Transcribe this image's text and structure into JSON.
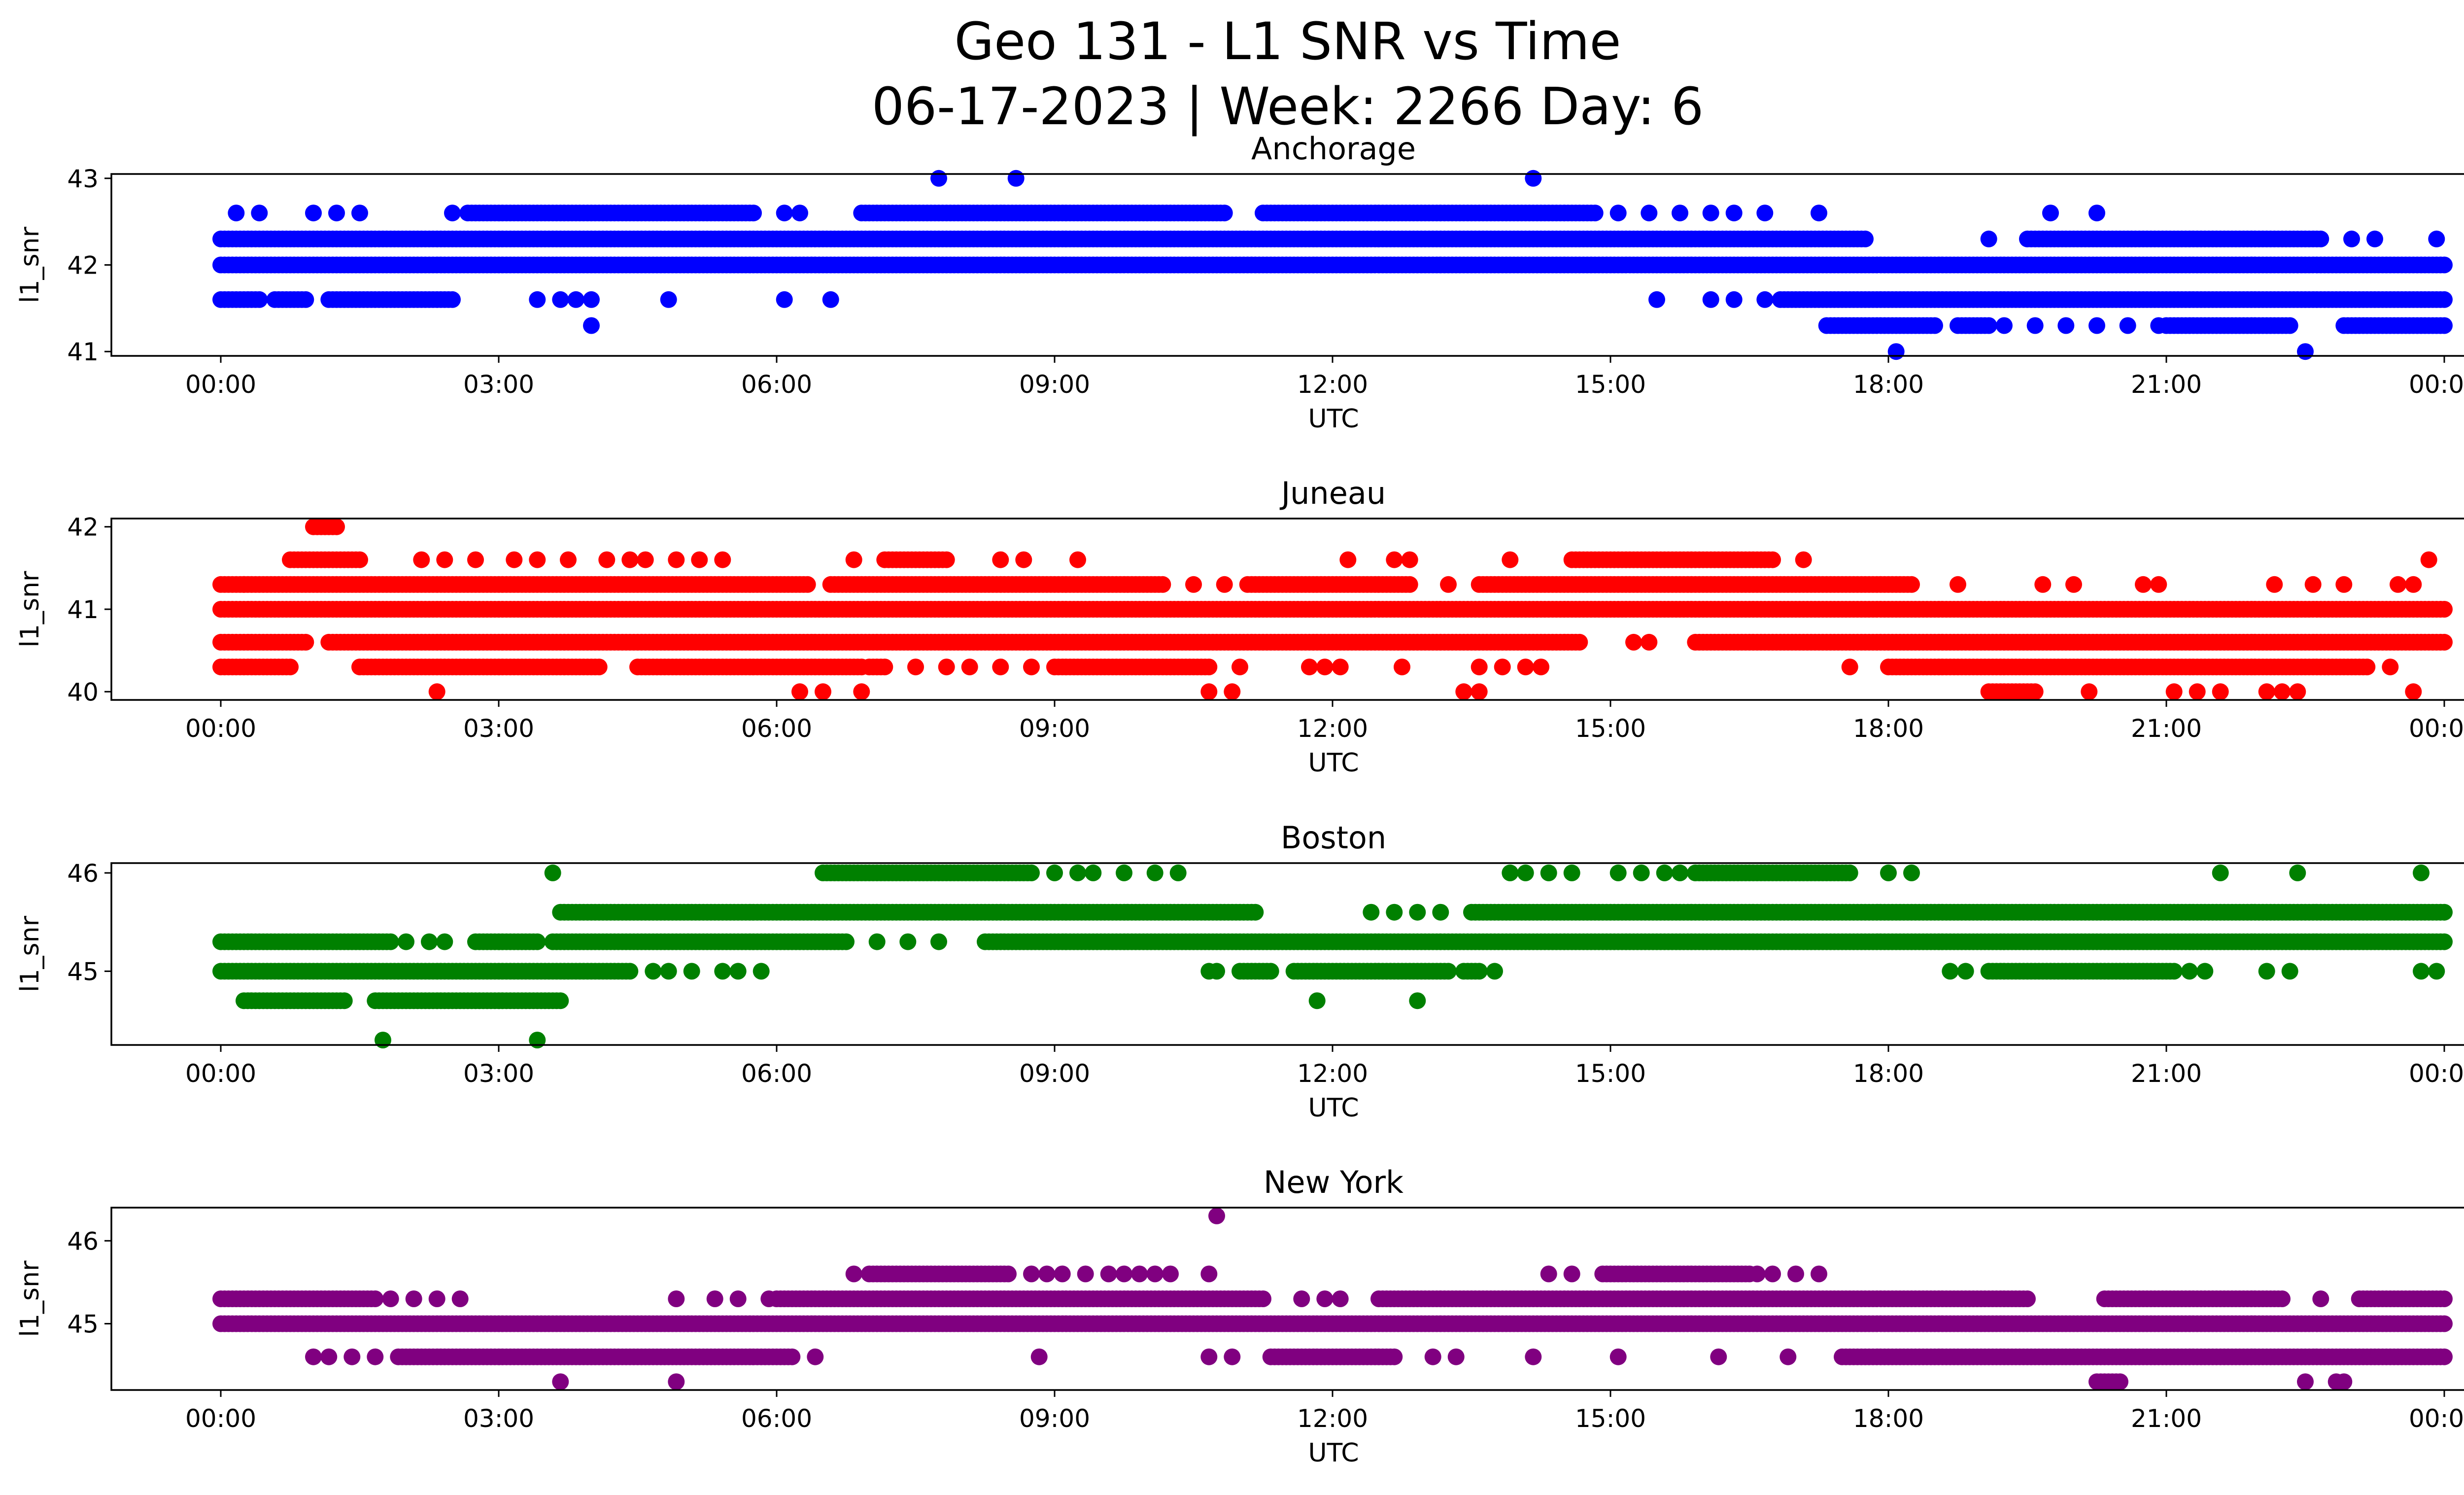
{
  "figure": {
    "title_line1": "Geo 131 - L1 SNR vs Time",
    "title_line2": "06-17-2023 | Week: 2266 Day: 6"
  },
  "chart_data": [
    {
      "type": "scatter",
      "title": "Anchorage",
      "xlabel": "UTC",
      "ylabel": "l1_snr",
      "color": "#0000ff",
      "xlim": [
        "2023-06-17T00:00",
        "2023-06-18T00:00"
      ],
      "ylim": [
        40.95,
        43.05
      ],
      "yticks": [
        41,
        42,
        43
      ],
      "xtick_labels": [
        "00:00",
        "03:00",
        "06:00",
        "09:00",
        "12:00",
        "15:00",
        "18:00",
        "21:00",
        "00:00"
      ],
      "grid": false,
      "series": [
        {
          "y": 42.3,
          "time_ranges": [
            [
              "00:00",
              "17:45"
            ],
            [
              "19:30",
              "22:40"
            ]
          ],
          "points": [
            "19:05",
            "23:00",
            "23:15",
            "23:55"
          ]
        },
        {
          "y": 42.0,
          "time_ranges": [
            [
              "00:00",
              "24:00"
            ]
          ]
        },
        {
          "y": 41.6,
          "time_ranges": [
            [
              "00:00",
              "00:25"
            ],
            [
              "00:35",
              "00:55"
            ],
            [
              "01:10",
              "02:30"
            ],
            [
              "16:50",
              "24:00"
            ]
          ],
          "points": [
            "03:25",
            "03:40",
            "03:50",
            "04:00",
            "04:50",
            "06:05",
            "06:35",
            "15:30",
            "16:05",
            "16:20",
            "16:40"
          ]
        },
        {
          "y": 42.6,
          "time_ranges": [
            [
              "02:40",
              "05:45"
            ],
            [
              "06:55",
              "10:50"
            ],
            [
              "11:15",
              "14:50"
            ]
          ],
          "points": [
            "00:10",
            "00:25",
            "01:00",
            "01:15",
            "01:30",
            "02:30",
            "06:05",
            "06:15",
            "15:05",
            "15:25",
            "15:45",
            "16:05",
            "16:20",
            "16:40",
            "17:15",
            "19:45",
            "20:15"
          ]
        },
        {
          "y": 41.3,
          "time_ranges": [
            [
              "17:20",
              "18:30"
            ],
            [
              "18:45",
              "19:05"
            ],
            [
              "21:00",
              "22:20"
            ],
            [
              "22:55",
              "24:00"
            ]
          ],
          "points": [
            "04:00",
            "19:15",
            "19:35",
            "19:55",
            "20:15",
            "20:35",
            "20:55"
          ]
        },
        {
          "y": 43.0,
          "time_ranges": [],
          "points": [
            "07:45",
            "08:35",
            "14:10"
          ]
        },
        {
          "y": 41.0,
          "time_ranges": [],
          "points": [
            "18:05",
            "22:30"
          ]
        }
      ]
    },
    {
      "type": "scatter",
      "title": "Juneau",
      "xlabel": "UTC",
      "ylabel": "l1_snr",
      "color": "#ff0000",
      "xlim": [
        "2023-06-17T00:00",
        "2023-06-18T00:00"
      ],
      "ylim": [
        39.9,
        42.1
      ],
      "yticks": [
        40,
        41,
        42
      ],
      "xtick_labels": [
        "00:00",
        "03:00",
        "06:00",
        "09:00",
        "12:00",
        "15:00",
        "18:00",
        "21:00",
        "00:00"
      ],
      "grid": false,
      "series": [
        {
          "y": 41.0,
          "time_ranges": [
            [
              "00:00",
              "24:00"
            ]
          ]
        },
        {
          "y": 40.6,
          "time_ranges": [
            [
              "00:00",
              "00:55"
            ],
            [
              "01:10",
              "14:40"
            ],
            [
              "15:55",
              "24:00"
            ]
          ],
          "points": [
            "15:15",
            "15:25"
          ]
        },
        {
          "y": 41.3,
          "time_ranges": [
            [
              "00:00",
              "06:20"
            ],
            [
              "06:35",
              "10:10"
            ],
            [
              "11:05",
              "12:50"
            ],
            [
              "13:35",
              "18:15"
            ]
          ],
          "points": [
            "00:15",
            "10:30",
            "10:50",
            "13:15",
            "18:45",
            "19:40",
            "20:00",
            "20:45",
            "20:55",
            "22:10",
            "22:35",
            "22:55",
            "23:30",
            "23:40"
          ]
        },
        {
          "y": 40.3,
          "time_ranges": [
            [
              "00:00",
              "00:45"
            ],
            [
              "01:30",
              "04:05"
            ],
            [
              "04:30",
              "06:55"
            ],
            [
              "07:00",
              "07:10"
            ],
            [
              "09:00",
              "10:40"
            ],
            [
              "18:00",
              "23:10"
            ]
          ],
          "points": [
            "07:30",
            "07:50",
            "08:05",
            "08:25",
            "08:45",
            "11:45",
            "11:55",
            "12:05",
            "11:00",
            "12:45",
            "13:35",
            "13:50",
            "14:05",
            "14:15",
            "17:35",
            "23:25"
          ]
        },
        {
          "y": 41.6,
          "time_ranges": [
            [
              "00:45",
              "01:30"
            ],
            [
              "07:10",
              "07:50"
            ],
            [
              "14:35",
              "16:45"
            ]
          ],
          "points": [
            "02:10",
            "02:25",
            "02:45",
            "03:10",
            "03:25",
            "03:45",
            "04:10",
            "04:25",
            "04:35",
            "04:55",
            "05:10",
            "05:25",
            "06:50",
            "08:25",
            "08:40",
            "09:15",
            "12:10",
            "12:40",
            "12:50",
            "13:55",
            "17:05",
            "23:50"
          ]
        },
        {
          "y": 42.0,
          "time_ranges": [
            [
              "01:00",
              "01:15"
            ]
          ]
        },
        {
          "y": 40.0,
          "time_ranges": [
            [
              "19:05",
              "19:35"
            ]
          ],
          "points": [
            "02:20",
            "06:15",
            "06:30",
            "06:55",
            "10:40",
            "10:55",
            "13:25",
            "13:35",
            "20:10",
            "21:05",
            "21:20",
            "21:35",
            "22:05",
            "22:15",
            "22:25",
            "23:40"
          ]
        }
      ]
    },
    {
      "type": "scatter",
      "title": "Boston",
      "xlabel": "UTC",
      "ylabel": "l1_snr",
      "color": "#008000",
      "xlim": [
        "2023-06-17T00:00",
        "2023-06-18T00:00"
      ],
      "ylim": [
        44.25,
        46.1
      ],
      "yticks": [
        45,
        46
      ],
      "xtick_labels": [
        "00:00",
        "03:00",
        "06:00",
        "09:00",
        "12:00",
        "15:00",
        "18:00",
        "21:00",
        "00:00"
      ],
      "grid": false,
      "series": [
        {
          "y": 45.3,
          "time_ranges": [
            [
              "00:00",
              "01:50"
            ],
            [
              "02:45",
              "03:25"
            ],
            [
              "03:35",
              "06:45"
            ],
            [
              "08:15",
              "24:00"
            ]
          ],
          "points": [
            "02:00",
            "02:15",
            "02:25",
            "07:05",
            "07:25",
            "07:45"
          ]
        },
        {
          "y": 45.0,
          "time_ranges": [
            [
              "00:00",
              "04:25"
            ],
            [
              "11:00",
              "11:20"
            ],
            [
              "11:35",
              "13:15"
            ],
            [
              "13:25",
              "13:35"
            ],
            [
              "19:05",
              "21:05"
            ]
          ],
          "points": [
            "04:40",
            "04:50",
            "05:05",
            "05:25",
            "05:35",
            "05:50",
            "10:40",
            "10:45",
            "13:45",
            "18:40",
            "18:50",
            "21:15",
            "21:25",
            "22:05",
            "22:20",
            "23:45",
            "23:55"
          ]
        },
        {
          "y": 45.6,
          "time_ranges": [
            [
              "03:40",
              "11:10"
            ],
            [
              "13:30",
              "24:00"
            ]
          ],
          "points": [
            "12:25",
            "12:40",
            "12:55",
            "13:10"
          ]
        },
        {
          "y": 46.0,
          "time_ranges": [
            [
              "06:30",
              "08:45"
            ],
            [
              "15:55",
              "17:35"
            ]
          ],
          "points": [
            "03:35",
            "09:00",
            "09:15",
            "09:25",
            "09:45",
            "10:05",
            "10:20",
            "13:55",
            "14:05",
            "14:20",
            "14:35",
            "15:05",
            "15:20",
            "15:35",
            "15:45",
            "18:00",
            "18:15",
            "21:35",
            "22:25",
            "23:45"
          ]
        },
        {
          "y": 44.7,
          "time_ranges": [
            [
              "00:15",
              "01:20"
            ],
            [
              "01:40",
              "03:40"
            ]
          ],
          "points": [
            "11:50",
            "12:55"
          ]
        },
        {
          "y": 44.3,
          "time_ranges": [],
          "points": [
            "01:45",
            "03:25"
          ]
        }
      ]
    },
    {
      "type": "scatter",
      "title": "New York",
      "xlabel": "UTC",
      "ylabel": "l1_snr",
      "color": "#800080",
      "xlim": [
        "2023-06-17T00:00",
        "2023-06-18T00:00"
      ],
      "ylim": [
        44.2,
        46.4
      ],
      "yticks": [
        45,
        46
      ],
      "xtick_labels": [
        "00:00",
        "03:00",
        "06:00",
        "09:00",
        "12:00",
        "15:00",
        "18:00",
        "21:00",
        "00:00"
      ],
      "grid": false,
      "series": [
        {
          "y": 45.0,
          "time_ranges": [
            [
              "00:00",
              "24:00"
            ]
          ]
        },
        {
          "y": 45.3,
          "time_ranges": [
            [
              "00:00",
              "01:40"
            ],
            [
              "06:00",
              "11:15"
            ],
            [
              "12:30",
              "19:30"
            ],
            [
              "20:20",
              "22:15"
            ],
            [
              "23:05",
              "24:00"
            ]
          ],
          "points": [
            "01:50",
            "02:05",
            "02:20",
            "02:35",
            "04:55",
            "05:20",
            "05:35",
            "05:55",
            "11:40",
            "11:55",
            "12:05",
            "22:40"
          ]
        },
        {
          "y": 44.6,
          "time_ranges": [
            [
              "01:55",
              "06:10"
            ],
            [
              "11:20",
              "12:40"
            ],
            [
              "17:30",
              "24:00"
            ]
          ],
          "points": [
            "01:00",
            "01:10",
            "01:25",
            "01:40",
            "06:25",
            "08:50",
            "10:40",
            "10:55",
            "13:05",
            "13:20",
            "14:10",
            "15:05",
            "16:10",
            "16:55"
          ]
        },
        {
          "y": 45.6,
          "time_ranges": [
            [
              "07:00",
              "08:30"
            ],
            [
              "14:55",
              "16:30"
            ]
          ],
          "points": [
            "06:50",
            "08:45",
            "08:55",
            "09:05",
            "09:20",
            "09:35",
            "09:45",
            "09:55",
            "10:05",
            "10:15",
            "10:40",
            "14:20",
            "14:35",
            "16:35",
            "16:45",
            "17:00",
            "17:15"
          ]
        },
        {
          "y": 46.3,
          "time_ranges": [],
          "points": [
            "10:45"
          ]
        },
        {
          "y": 44.3,
          "time_ranges": [
            [
              "20:15",
              "20:30"
            ]
          ],
          "points": [
            "03:40",
            "04:55",
            "22:30",
            "22:50",
            "22:55"
          ]
        }
      ]
    }
  ]
}
